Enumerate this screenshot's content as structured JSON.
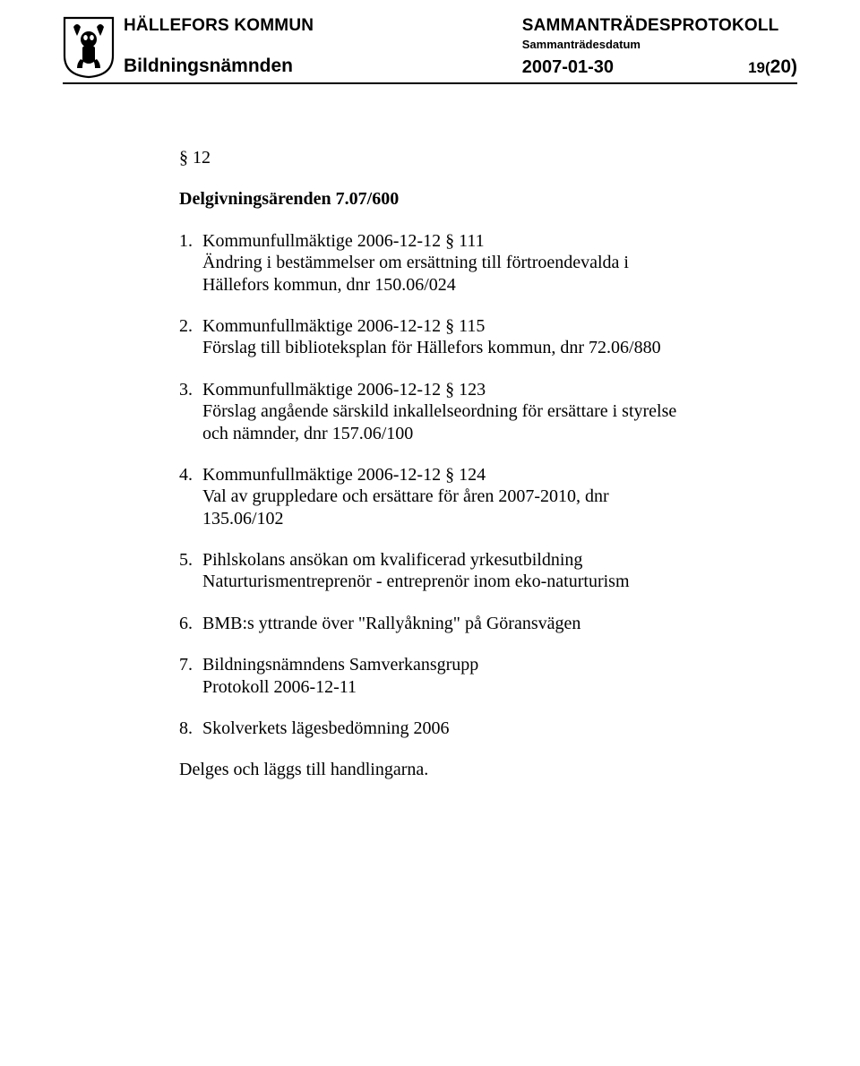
{
  "header": {
    "org": "HÄLLEFORS KOMMUN",
    "committee": "Bildningsnämnden",
    "doc_title": "SAMMANTRÄDESPROTOKOLL",
    "date_label": "Sammanträdesdatum",
    "date": "2007-01-30",
    "page_current": "19(",
    "page_total": "20)"
  },
  "section": {
    "number": "§ 12",
    "title_text": "Delgivningsärenden",
    "title_ref": "7.07/600"
  },
  "items": [
    {
      "n": "1.",
      "text": "Kommunfullmäktige 2006-12-12 § 111\nÄndring i bestämmelser om ersättning till förtroendevalda i Hällefors kommun, dnr 150.06/024"
    },
    {
      "n": "2.",
      "text": "Kommunfullmäktige 2006-12-12 § 115\nFörslag till biblioteksplan för Hällefors kommun, dnr 72.06/880"
    },
    {
      "n": "3.",
      "text": "Kommunfullmäktige 2006-12-12 § 123\nFörslag angående särskild inkallelseordning för ersättare i styrelse och nämnder, dnr 157.06/100"
    },
    {
      "n": "4.",
      "text": "Kommunfullmäktige 2006-12-12 § 124\nVal av gruppledare och ersättare för åren 2007-2010, dnr 135.06/102"
    },
    {
      "n": "5.",
      "text": "Pihlskolans ansökan om kvalificerad yrkesutbildning Naturturismentreprenör -  entreprenör inom eko-naturturism"
    },
    {
      "n": "6.",
      "text": "BMB:s yttrande över \"Rallyåkning\" på Göransvägen"
    },
    {
      "n": "7.",
      "text": "Bildningsnämndens Samverkansgrupp\nProtokoll 2006-12-11"
    },
    {
      "n": "8.",
      "text": "Skolverkets lägesbedömning 2006"
    }
  ],
  "closing": "Delges och läggs till handlingarna."
}
